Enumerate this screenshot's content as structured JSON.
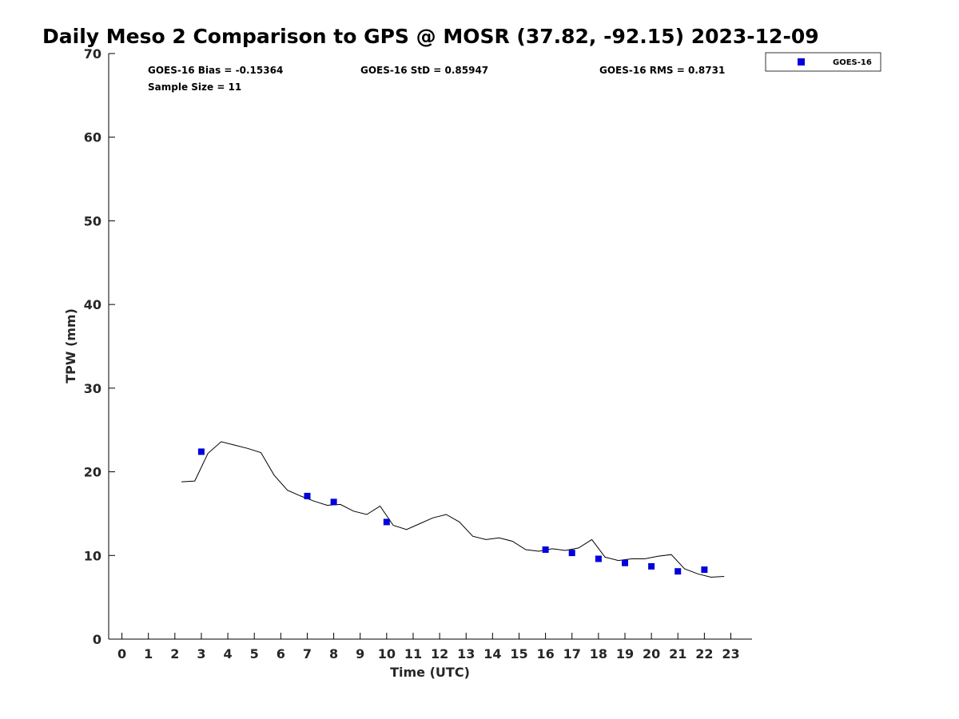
{
  "chart_data": {
    "type": "scatter",
    "title": "Daily Meso 2 Comparison to GPS @ MOSR (37.82, -92.15) 2023-12-09",
    "xlabel": "Time (UTC)",
    "ylabel": "TPW (mm)",
    "xlim": [
      -0.5,
      23.8
    ],
    "ylim": [
      0,
      70
    ],
    "x_ticks": [
      0,
      1,
      2,
      3,
      4,
      5,
      6,
      7,
      8,
      9,
      10,
      11,
      12,
      13,
      14,
      15,
      16,
      17,
      18,
      19,
      20,
      21,
      22,
      23
    ],
    "y_ticks": [
      0,
      10,
      20,
      30,
      40,
      50,
      60,
      70
    ],
    "grid": false,
    "legend_position": "top-right",
    "stats": {
      "bias": "GOES-16 Bias = -0.15364",
      "std": "GOES-16 StD = 0.85947",
      "rms": "GOES-16 RMS = 0.8731",
      "sample_size": "Sample Size = 11"
    },
    "series": [
      {
        "name": "GOES-16",
        "kind": "scatter",
        "color": "#0000dd",
        "x": [
          3,
          7,
          8,
          10,
          16,
          17,
          18,
          19,
          20,
          21,
          22
        ],
        "y": [
          22.4,
          17.1,
          16.4,
          14.0,
          10.7,
          10.3,
          9.6,
          9.1,
          8.7,
          8.1,
          8.3
        ]
      },
      {
        "kind": "line",
        "color": "#000000",
        "x": [
          2.25,
          2.75,
          3.25,
          3.75,
          4.25,
          4.75,
          5.25,
          5.75,
          6.25,
          6.75,
          7.25,
          7.75,
          8.25,
          8.75,
          9.25,
          9.75,
          10.25,
          10.75,
          11.25,
          11.75,
          12.25,
          12.75,
          13.25,
          13.75,
          14.25,
          14.75,
          15.25,
          15.75,
          16.25,
          16.75,
          17.25,
          17.75,
          18.25,
          18.75,
          19.25,
          19.75,
          20.25,
          20.75,
          21.25,
          21.75,
          22.25,
          22.75
        ],
        "y": [
          18.8,
          18.9,
          22.2,
          23.6,
          23.2,
          22.8,
          22.3,
          19.6,
          17.8,
          17.1,
          16.5,
          16.0,
          16.1,
          15.3,
          14.9,
          15.9,
          13.6,
          13.1,
          13.8,
          14.5,
          14.9,
          14.0,
          12.3,
          11.9,
          12.1,
          11.7,
          10.7,
          10.5,
          10.8,
          10.6,
          10.9,
          11.9,
          9.8,
          9.4,
          9.6,
          9.6,
          9.9,
          10.1,
          8.4,
          7.8,
          7.4,
          7.5
        ]
      }
    ]
  }
}
